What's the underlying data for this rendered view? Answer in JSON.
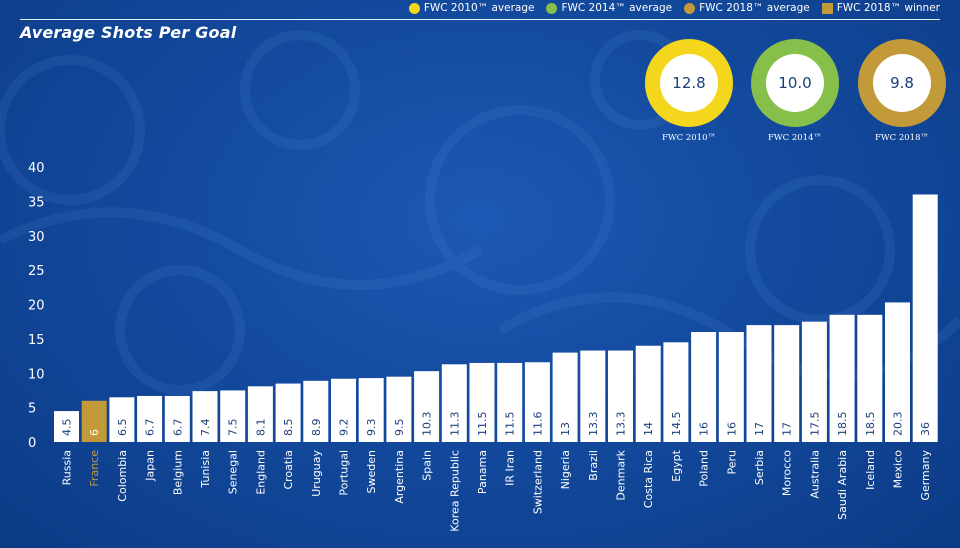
{
  "legend": [
    {
      "label": "FWC 2010™ average",
      "color": "#f4d71c",
      "shape": "circle"
    },
    {
      "label": "FWC 2014™ average",
      "color": "#86c04a",
      "shape": "circle"
    },
    {
      "label": "FWC 2018™ average",
      "color": "#c39a3a",
      "shape": "circle"
    },
    {
      "label": "FWC 2018™ winner",
      "color": "#c39a3a",
      "shape": "square"
    }
  ],
  "averages": [
    {
      "value": "12.8",
      "label": "FWC 2010™",
      "color": "#f4d71c"
    },
    {
      "value": "10.0",
      "label": "FWC 2014™",
      "color": "#86c04a"
    },
    {
      "value": "9.8",
      "label": "FWC 2018™",
      "color": "#c39a3a"
    }
  ],
  "colors": {
    "bar": "#ffffff",
    "winner_bar": "#c39a3a",
    "value_label": "#1b3f7a",
    "axis_text": "#ffffff"
  },
  "chart_data": {
    "type": "bar",
    "title": "Average Shots Per Goal",
    "ylim": [
      0,
      40
    ],
    "yticks": [
      0,
      5,
      10,
      15,
      20,
      25,
      30,
      35,
      40
    ],
    "grid": false,
    "highlight_category": "France",
    "categories": [
      "Russia",
      "France",
      "Colombia",
      "Japan",
      "Belgium",
      "Tunisia",
      "Senegal",
      "England",
      "Croatia",
      "Uruguay",
      "Portugal",
      "Sweden",
      "Argentina",
      "Spain",
      "Korea Republic",
      "Panama",
      "IR Iran",
      "Switzerland",
      "Nigeria",
      "Brazil",
      "Denmark",
      "Costa Rica",
      "Egypt",
      "Poland",
      "Peru",
      "Serbia",
      "Morocco",
      "Australia",
      "Saudi Arabia",
      "Iceland",
      "Mexico",
      "Germany"
    ],
    "values": [
      4.5,
      6,
      6.5,
      6.7,
      6.7,
      7.4,
      7.5,
      8.1,
      8.5,
      8.9,
      9.2,
      9.3,
      9.5,
      10.3,
      11.3,
      11.5,
      11.5,
      11.6,
      13,
      13.3,
      13.3,
      14,
      14.5,
      16,
      16,
      17,
      17,
      17.5,
      18.5,
      18.5,
      20.3,
      36
    ],
    "value_labels": [
      "4.5",
      "6",
      "6.5",
      "6.7",
      "6.7",
      "7.4",
      "7.5",
      "8.1",
      "8.5",
      "8.9",
      "9.2",
      "9.3",
      "9.5",
      "10.3",
      "11.3",
      "11.5",
      "11.5",
      "11.6",
      "13",
      "13.3",
      "13.3",
      "14",
      "14.5",
      "16",
      "16",
      "17",
      "17",
      "17.5",
      "18.5",
      "18.5",
      "20.3",
      "36"
    ]
  }
}
